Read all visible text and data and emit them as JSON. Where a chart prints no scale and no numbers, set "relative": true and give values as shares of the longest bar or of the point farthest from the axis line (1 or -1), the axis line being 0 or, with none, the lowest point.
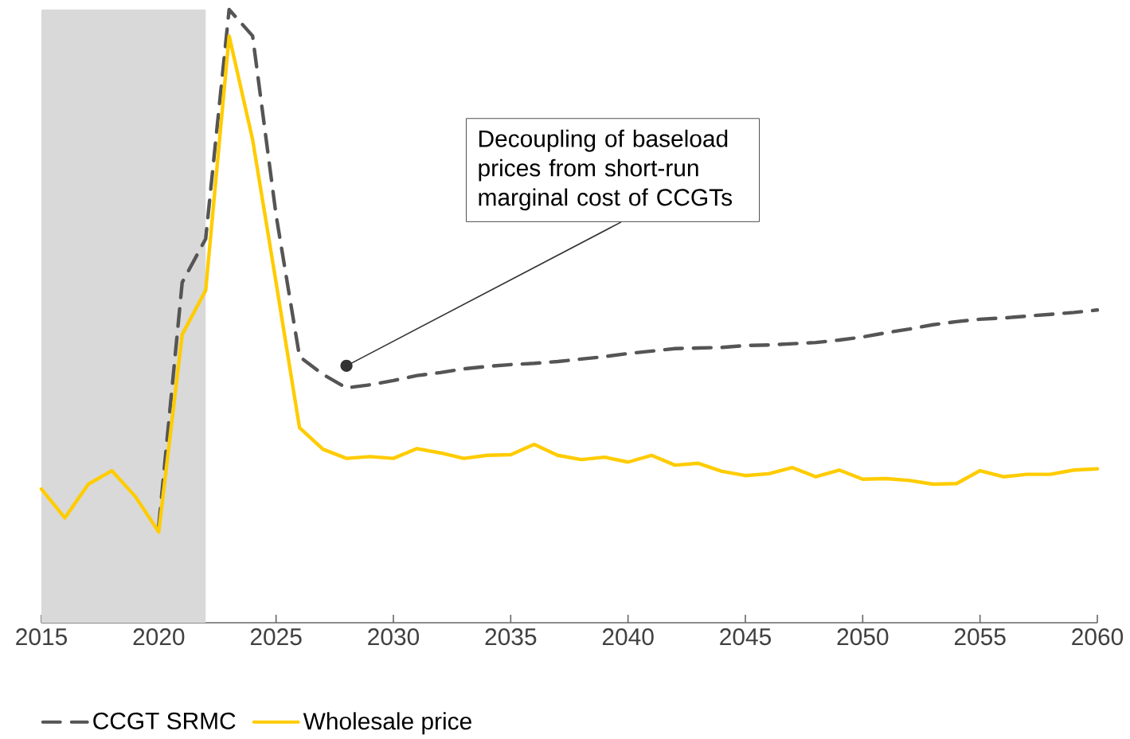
{
  "chart_data": {
    "type": "line",
    "relative": true,
    "x": [
      2015,
      2016,
      2017,
      2018,
      2019,
      2020,
      2021,
      2022,
      2023,
      2024,
      2025,
      2026,
      2027,
      2028,
      2029,
      2030,
      2031,
      2032,
      2033,
      2034,
      2035,
      2036,
      2037,
      2038,
      2039,
      2040,
      2041,
      2042,
      2043,
      2044,
      2045,
      2046,
      2047,
      2048,
      2049,
      2050,
      2051,
      2052,
      2053,
      2054,
      2055,
      2056,
      2057,
      2058,
      2059,
      2060
    ],
    "series": [
      {
        "name": "CCGT SRMC",
        "color": "#555555",
        "line_style": "dashed",
        "values": [
          null,
          null,
          null,
          null,
          null,
          0.158,
          0.555,
          0.626,
          1,
          0.957,
          0.665,
          0.434,
          0.405,
          0.383,
          0.388,
          0.395,
          0.403,
          0.408,
          0.414,
          0.418,
          0.421,
          0.423,
          0.426,
          0.43,
          0.434,
          0.439,
          0.443,
          0.447,
          0.448,
          0.449,
          0.452,
          0.453,
          0.455,
          0.457,
          0.461,
          0.466,
          0.473,
          0.479,
          0.486,
          0.491,
          0.495,
          0.497,
          0.5,
          0.503,
          0.506,
          0.51
        ]
      },
      {
        "name": "Wholesale price",
        "color": "#ffcc00",
        "line_style": "solid",
        "values": [
          0.218,
          0.171,
          0.226,
          0.248,
          0.206,
          0.148,
          0.47,
          0.542,
          0.957,
          0.788,
          0.555,
          0.318,
          0.283,
          0.268,
          0.271,
          0.268,
          0.284,
          0.277,
          0.268,
          0.273,
          0.274,
          0.291,
          0.273,
          0.266,
          0.27,
          0.262,
          0.273,
          0.257,
          0.26,
          0.247,
          0.24,
          0.243,
          0.253,
          0.238,
          0.249,
          0.234,
          0.235,
          0.232,
          0.226,
          0.227,
          0.248,
          0.238,
          0.242,
          0.242,
          0.249,
          0.251
        ]
      }
    ],
    "xlim": [
      2015,
      2060
    ],
    "xticks": [
      2015,
      2020,
      2025,
      2030,
      2035,
      2040,
      2045,
      2050,
      2055,
      2060
    ],
    "bands": [
      {
        "axis": "x",
        "from": 2015,
        "to": 2022,
        "color": "#d9d9d9"
      }
    ],
    "annotations": [
      {
        "text": "Decoupling of baseload prices from short-run marginal cost of CCGTs",
        "x": 2028,
        "y": 0.419
      }
    ],
    "legend": "bottom left",
    "grid": false,
    "marker": "none"
  }
}
